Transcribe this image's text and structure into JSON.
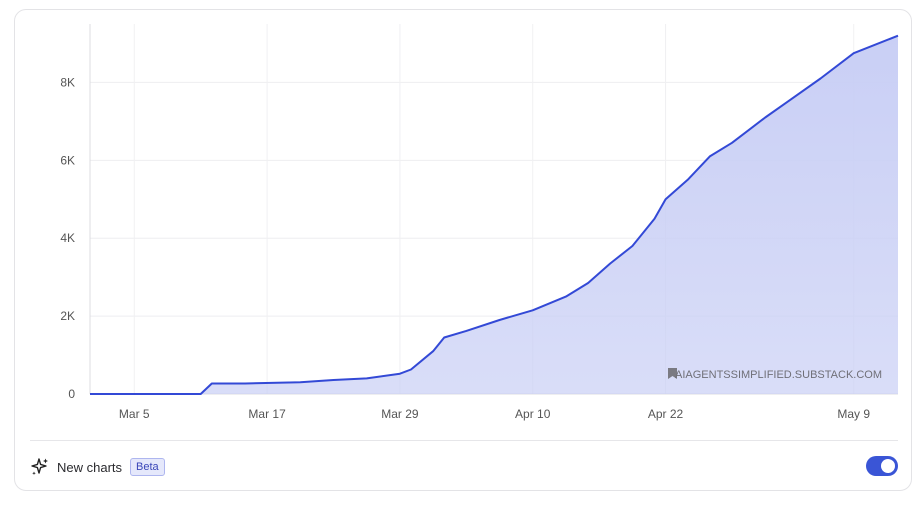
{
  "chart_data": {
    "type": "area",
    "x_labels": [
      "Mar 5",
      "Mar 17",
      "Mar 29",
      "Apr 10",
      "Apr 22",
      "May 9"
    ],
    "y_ticks": [
      "0",
      "2K",
      "4K",
      "6K",
      "8K"
    ],
    "ylim": [
      0,
      9500
    ],
    "grid": true,
    "watermark": "AIAGENTSSIMPLIFIED.SUBSTACK.COM",
    "series": [
      {
        "color": "#3349d6",
        "fill": "#c9cff5",
        "points": [
          {
            "x": "Mar 1",
            "y": 0
          },
          {
            "x": "Mar 11",
            "y": 0
          },
          {
            "x": "Mar 12",
            "y": 270
          },
          {
            "x": "Mar 15",
            "y": 270
          },
          {
            "x": "Mar 20",
            "y": 300
          },
          {
            "x": "Mar 23",
            "y": 360
          },
          {
            "x": "Mar 26",
            "y": 400
          },
          {
            "x": "Mar 29",
            "y": 520
          },
          {
            "x": "Mar 30",
            "y": 630
          },
          {
            "x": "Apr 1",
            "y": 1100
          },
          {
            "x": "Apr 2",
            "y": 1450
          },
          {
            "x": "Apr 4",
            "y": 1620
          },
          {
            "x": "Apr 7",
            "y": 1900
          },
          {
            "x": "Apr 10",
            "y": 2150
          },
          {
            "x": "Apr 13",
            "y": 2500
          },
          {
            "x": "Apr 15",
            "y": 2850
          },
          {
            "x": "Apr 17",
            "y": 3350
          },
          {
            "x": "Apr 19",
            "y": 3800
          },
          {
            "x": "Apr 21",
            "y": 4500
          },
          {
            "x": "Apr 22",
            "y": 5000
          },
          {
            "x": "Apr 24",
            "y": 5500
          },
          {
            "x": "Apr 26",
            "y": 6100
          },
          {
            "x": "Apr 28",
            "y": 6450
          },
          {
            "x": "May 1",
            "y": 7100
          },
          {
            "x": "May 3",
            "y": 7500
          },
          {
            "x": "May 6",
            "y": 8100
          },
          {
            "x": "May 9",
            "y": 8750
          },
          {
            "x": "May 13",
            "y": 9200
          }
        ]
      }
    ]
  },
  "footer": {
    "new_charts_label": "New charts",
    "beta_badge": "Beta",
    "toggle_on": true
  }
}
